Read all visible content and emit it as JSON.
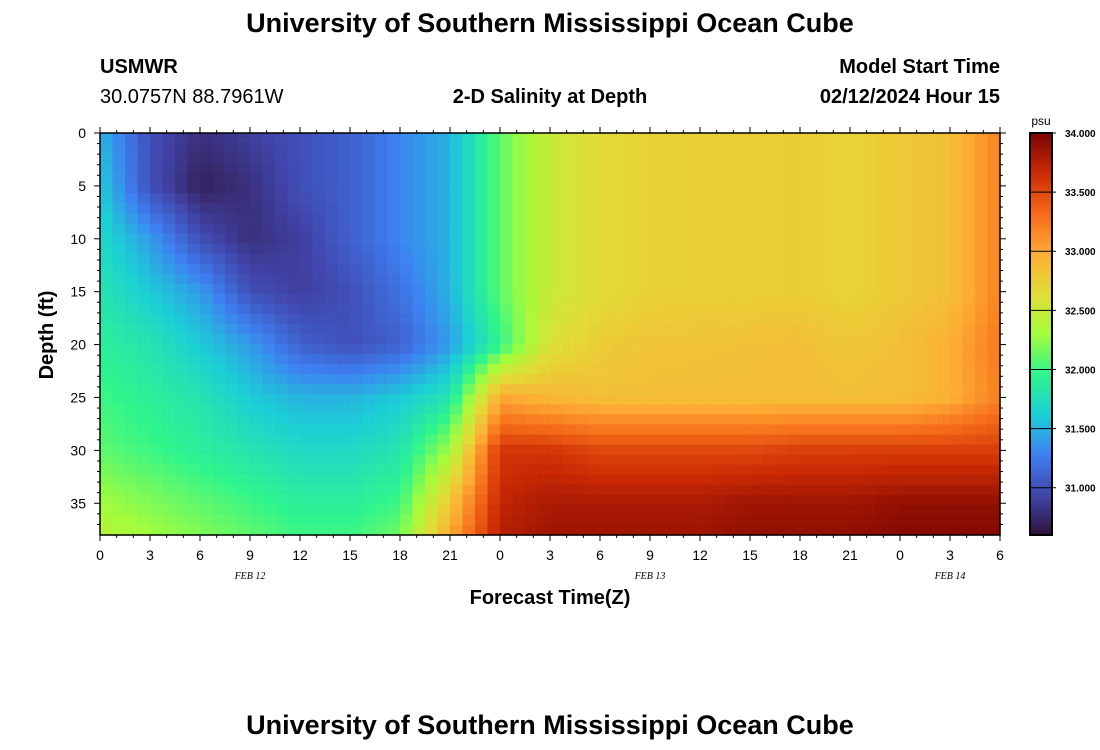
{
  "header": {
    "title": "University of Southern Mississippi Ocean Cube",
    "station": "USMWR",
    "coords": "30.0757N  88.7961W",
    "subtitle": "2-D Salinity at Depth",
    "model_start_label": "Model Start Time",
    "model_start_value": "02/12/2024 Hour 15"
  },
  "footer": {
    "title": "University of Southern Mississippi Ocean Cube"
  },
  "chart_data": {
    "type": "heatmap",
    "title": "2-D Salinity at Depth",
    "xlabel": "Forecast Time(Z)",
    "ylabel": "Depth (ft)",
    "x_tick_labels": [
      "0",
      "3",
      "6",
      "9",
      "12",
      "15",
      "18",
      "21",
      "0",
      "3",
      "6",
      "9",
      "12",
      "15",
      "18",
      "21",
      "0",
      "3",
      "6"
    ],
    "x_date_labels": [
      {
        "label": "FEB 12",
        "at_hour": 9
      },
      {
        "label": "FEB 13",
        "at_hour": 33
      },
      {
        "label": "FEB 14",
        "at_hour": 51
      }
    ],
    "x_range_hours": [
      0,
      54
    ],
    "y_tick_labels": [
      "0",
      "5",
      "10",
      "15",
      "20",
      "25",
      "30",
      "35"
    ],
    "y_range": [
      0,
      38
    ],
    "y_inverted": true,
    "colorbar": {
      "unit": "psu",
      "min": 30.6,
      "max": 34.0,
      "tick_labels": [
        "34.000",
        "33.500",
        "33.000",
        "32.500",
        "32.000",
        "31.500",
        "31.000"
      ],
      "tick_values": [
        34.0,
        33.5,
        33.0,
        32.5,
        32.0,
        31.5,
        31.0
      ],
      "colors": [
        "#30123b",
        "#4145ab",
        "#3e80f2",
        "#1bd0d5",
        "#2ff58d",
        "#a4fc3c",
        "#e1dd37",
        "#feac35",
        "#f56918",
        "#cb2a04",
        "#7a0403"
      ]
    },
    "salinity_grid_psu": {
      "x_hours": [
        0,
        3,
        6,
        9,
        12,
        15,
        18,
        21,
        24,
        27,
        30,
        33,
        36,
        39,
        42,
        45,
        48,
        51,
        54
      ],
      "depths_ft": [
        0,
        5,
        10,
        15,
        20,
        25,
        30,
        35,
        38
      ],
      "values": [
        [
          31.5,
          31.0,
          30.8,
          30.9,
          31.0,
          31.1,
          31.3,
          31.5,
          32.1,
          32.5,
          32.65,
          32.72,
          32.73,
          32.74,
          32.75,
          32.7,
          32.78,
          32.85,
          33.2
        ],
        [
          31.6,
          31.0,
          30.7,
          30.8,
          31.0,
          31.1,
          31.3,
          31.5,
          32.1,
          32.5,
          32.65,
          32.72,
          32.73,
          32.74,
          32.75,
          32.7,
          32.78,
          32.85,
          33.2
        ],
        [
          31.7,
          31.4,
          31.0,
          30.8,
          30.9,
          31.1,
          31.3,
          31.5,
          32.1,
          32.5,
          32.65,
          32.72,
          32.73,
          32.74,
          32.75,
          32.7,
          32.78,
          32.85,
          33.2
        ],
        [
          31.8,
          31.6,
          31.4,
          31.0,
          30.9,
          31.0,
          31.2,
          31.5,
          32.1,
          32.5,
          32.65,
          32.72,
          32.73,
          32.74,
          32.75,
          32.7,
          32.78,
          32.85,
          33.2
        ],
        [
          31.9,
          31.8,
          31.6,
          31.4,
          31.1,
          31.0,
          31.1,
          31.4,
          31.95,
          32.6,
          32.75,
          32.82,
          32.83,
          32.84,
          32.85,
          32.8,
          32.85,
          32.95,
          33.25
        ],
        [
          32.0,
          31.9,
          31.8,
          31.6,
          31.5,
          31.5,
          31.6,
          31.8,
          33.0,
          32.9,
          32.85,
          32.85,
          32.85,
          32.85,
          32.85,
          32.85,
          32.85,
          32.95,
          33.2
        ],
        [
          32.1,
          32.0,
          31.9,
          31.8,
          31.7,
          31.7,
          31.8,
          32.3,
          33.6,
          33.6,
          33.5,
          33.5,
          33.5,
          33.5,
          33.55,
          33.55,
          33.55,
          33.55,
          33.55
        ],
        [
          32.3,
          32.2,
          32.1,
          32.0,
          31.9,
          31.9,
          32.0,
          32.8,
          33.7,
          33.8,
          33.8,
          33.8,
          33.8,
          33.85,
          33.85,
          33.85,
          33.9,
          33.9,
          33.9
        ],
        [
          32.4,
          32.3,
          32.2,
          32.1,
          32.0,
          32.0,
          32.15,
          33.0,
          33.75,
          33.85,
          33.85,
          33.85,
          33.85,
          33.9,
          33.9,
          33.9,
          33.95,
          33.95,
          33.95
        ]
      ]
    }
  }
}
